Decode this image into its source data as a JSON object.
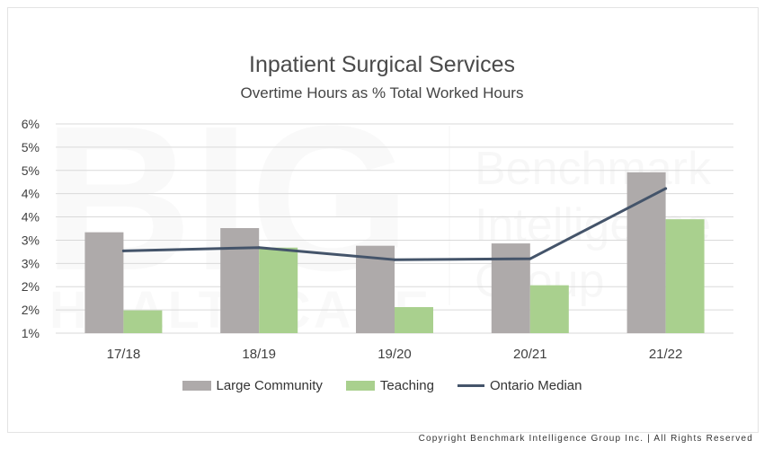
{
  "colors": {
    "large_community": "#aeaaaa",
    "teaching": "#a9d08e",
    "ontario_median": "#44546a",
    "grid": "#d9d9d9",
    "text": "#404040"
  },
  "watermark": {
    "big": "BIG",
    "healthcare": "HEALTHCARE",
    "line1": "Benchmark",
    "line2": "Intelligence",
    "line3": "Group"
  },
  "chart_data": {
    "type": "bar",
    "title": "Inpatient Surgical Services",
    "subtitle": "Overtime Hours as % Total Worked Hours",
    "categories": [
      "17/18",
      "18/19",
      "19/20",
      "20/21",
      "21/22"
    ],
    "y_ticks": [
      "1%",
      "2%",
      "2%",
      "3%",
      "3%",
      "4%",
      "4%",
      "5%",
      "5%",
      "6%"
    ],
    "ylim": [
      1,
      5.5
    ],
    "grid": true,
    "legend_position": "bottom",
    "series": [
      {
        "name": "Large Community",
        "type": "bar",
        "values": [
          3.17,
          3.26,
          2.88,
          2.93,
          4.46
        ]
      },
      {
        "name": "Teaching",
        "type": "bar",
        "values": [
          1.49,
          2.84,
          1.56,
          2.03,
          3.45
        ]
      },
      {
        "name": "Ontario Median",
        "type": "line",
        "values": [
          2.77,
          2.84,
          2.58,
          2.6,
          4.11
        ]
      }
    ]
  },
  "footer": {
    "copyright": "Copyright Benchmark Intelligence Group Inc. | All Rights Reserved"
  }
}
